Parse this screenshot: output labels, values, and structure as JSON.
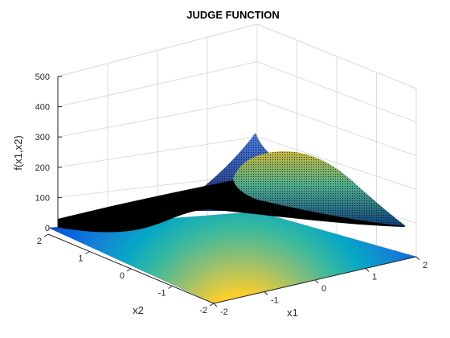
{
  "chart_data": {
    "type": "surface",
    "title": "JUDGE FUNCTION",
    "xlabel": "x1",
    "ylabel": "x2",
    "zlabel": "f(x1,x2)",
    "xlim": [
      -2,
      2
    ],
    "ylim": [
      -2,
      2
    ],
    "zlim": [
      0,
      500
    ],
    "xticks": [
      "-2",
      "-1",
      "0",
      "1",
      "2"
    ],
    "yticks": [
      "-2",
      "-1",
      "0",
      "1",
      "2"
    ],
    "zticks": [
      "0",
      "100",
      "200",
      "300",
      "400",
      "500"
    ],
    "grid": true,
    "plots": [
      "mesh surface",
      "filled contour at z=0"
    ],
    "colormap": "parula",
    "colors": {
      "surface_edge": "#000000",
      "grid": "#dcdcdc",
      "axis": "#262626",
      "parula": [
        "#352a87",
        "#0363e1",
        "#1485d4",
        "#06a7c6",
        "#38b99e",
        "#92bf73",
        "#d9ba56",
        "#fcce2e",
        "#f9fb0e"
      ]
    }
  }
}
